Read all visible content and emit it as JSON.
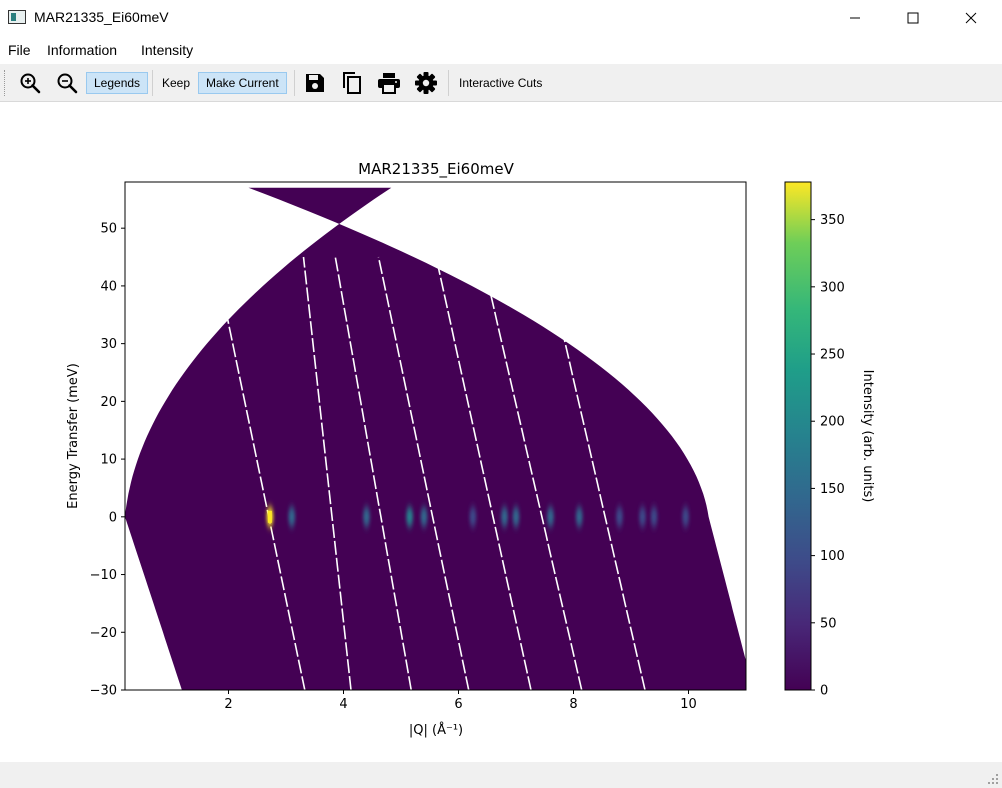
{
  "window": {
    "title": "MAR21335_Ei60meV",
    "minimize_glyph": "─",
    "maximize_glyph": "☐",
    "close_glyph": "✕"
  },
  "menu": [
    "File",
    "Information",
    "Intensity"
  ],
  "toolbar": {
    "zoom_in_icon": "zoom-in-icon",
    "zoom_out_icon": "zoom-out-icon",
    "legends": "Legends",
    "keep": "Keep",
    "make_current": "Make Current",
    "save_icon": "save-icon",
    "copy_icon": "copy-icon",
    "print_icon": "print-icon",
    "settings_icon": "gear-icon",
    "interactive_cuts": "Interactive Cuts"
  },
  "chart_data": {
    "type": "heatmap",
    "title": "MAR21335_Ei60meV",
    "xlabel": "|Q| (Å⁻¹)",
    "ylabel": "Energy Transfer (meV)",
    "xlim": [
      0.2,
      11.0
    ],
    "ylim": [
      -30,
      58
    ],
    "xticks": [
      2,
      4,
      6,
      8,
      10
    ],
    "yticks": [
      -30,
      -20,
      -10,
      0,
      10,
      20,
      30,
      40,
      50
    ],
    "grid": false,
    "colormap": "viridis",
    "colorbar": {
      "label": "Intensity (arb. units)",
      "range": [
        0,
        378
      ],
      "ticks": [
        0,
        50,
        100,
        150,
        200,
        250,
        300,
        350
      ]
    },
    "background_intensity": 2,
    "elastic_peaks": [
      {
        "q": 2.72,
        "energy": 0,
        "intensity": 378
      },
      {
        "q": 3.1,
        "energy": 0,
        "intensity": 140
      },
      {
        "q": 4.4,
        "energy": 0,
        "intensity": 115
      },
      {
        "q": 5.15,
        "energy": 0,
        "intensity": 170
      },
      {
        "q": 5.4,
        "energy": 0,
        "intensity": 120
      },
      {
        "q": 6.25,
        "energy": 0,
        "intensity": 70
      },
      {
        "q": 6.8,
        "energy": 0,
        "intensity": 120
      },
      {
        "q": 7.0,
        "energy": 0,
        "intensity": 110
      },
      {
        "q": 7.6,
        "energy": 0,
        "intensity": 115
      },
      {
        "q": 8.1,
        "energy": 0,
        "intensity": 105
      },
      {
        "q": 8.8,
        "energy": 0,
        "intensity": 70
      },
      {
        "q": 9.2,
        "energy": 0,
        "intensity": 95
      },
      {
        "q": 9.4,
        "energy": 0,
        "intensity": 100
      },
      {
        "q": 9.95,
        "energy": 0,
        "intensity": 70
      }
    ]
  }
}
